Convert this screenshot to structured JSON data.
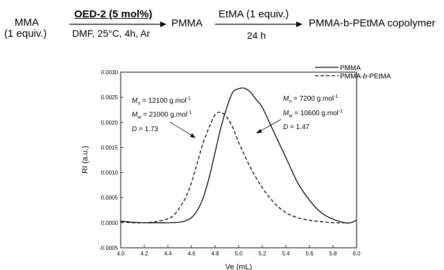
{
  "scheme": {
    "reactant_name": "MMA",
    "reactant_equiv": "(1 equiv.)",
    "step1_catalyst": "OED-2 (5 mol%)",
    "step1_conditions": "DMF, 25°C, 4h, Ar",
    "intermediate": "PMMA",
    "step2_reagent": "EtMA (1 equiv.)",
    "step2_time": "24 h",
    "product": "PMMA-b-PEtMA copolymer"
  },
  "chart_data": {
    "type": "line",
    "xlabel": "Ve (mL)",
    "ylabel": "RI (a.u.)",
    "xlim": [
      4.0,
      6.0
    ],
    "ylim": [
      -0.0005,
      0.003
    ],
    "x_ticks": [
      "4.0",
      "4.2",
      "4.4",
      "4.6",
      "4.8",
      "5.0",
      "5.2",
      "5.4",
      "5.6",
      "5.8",
      "6.0"
    ],
    "y_ticks": [
      "-0.0005",
      "0.0000",
      "0.0005",
      "0.0010",
      "0.0015",
      "0.0020",
      "0.0025",
      "0.0030"
    ],
    "legend_position": "top-right",
    "series": [
      {
        "name": "PMMA",
        "style": "solid",
        "x": [
          4.0,
          4.1,
          4.2,
          4.3,
          4.4,
          4.5,
          4.55,
          4.6,
          4.65,
          4.7,
          4.75,
          4.8,
          4.85,
          4.9,
          4.95,
          5.0,
          5.05,
          5.1,
          5.15,
          5.2,
          5.3,
          5.4,
          5.5,
          5.6,
          5.7,
          5.8,
          5.9,
          5.95,
          6.0
        ],
        "values": [
          3e-05,
          1e-05,
          0.0,
          0.0,
          0.0,
          1e-05,
          4e-05,
          0.0001,
          0.00025,
          0.0005,
          0.0009,
          0.0014,
          0.0019,
          0.0023,
          0.0026,
          0.00267,
          0.00268,
          0.0026,
          0.00245,
          0.0023,
          0.0018,
          0.0013,
          0.0008,
          0.00045,
          0.0002,
          7e-05,
          0.0,
          0.0,
          5e-05
        ]
      },
      {
        "name": "PMMA-b-PEtMA",
        "style": "dashed",
        "x": [
          4.0,
          4.1,
          4.2,
          4.3,
          4.4,
          4.45,
          4.5,
          4.55,
          4.6,
          4.65,
          4.7,
          4.75,
          4.8,
          4.85,
          4.9,
          4.95,
          5.0,
          5.1,
          5.2,
          5.3,
          5.4,
          5.5,
          5.6,
          5.7,
          5.8,
          5.9
        ],
        "values": [
          2e-05,
          0.0,
          0.0,
          2e-05,
          8e-05,
          0.00015,
          0.0003,
          0.0005,
          0.0008,
          0.0012,
          0.0016,
          0.0019,
          0.00215,
          0.0022,
          0.0021,
          0.0019,
          0.0016,
          0.0011,
          0.0007,
          0.0004,
          0.0002,
          0.0001,
          5e-05,
          2e-05,
          0.0,
          0.0
        ]
      }
    ],
    "annotations": [
      {
        "for_series": "PMMA-b-PEtMA",
        "mn": "12100 g.mol",
        "mw": "21000 g.mol",
        "d": "1.73"
      },
      {
        "for_series": "PMMA",
        "mn": "7200 g.mol",
        "mw": "10600 g.mol",
        "d": "1.47"
      }
    ],
    "sup": "-1"
  }
}
